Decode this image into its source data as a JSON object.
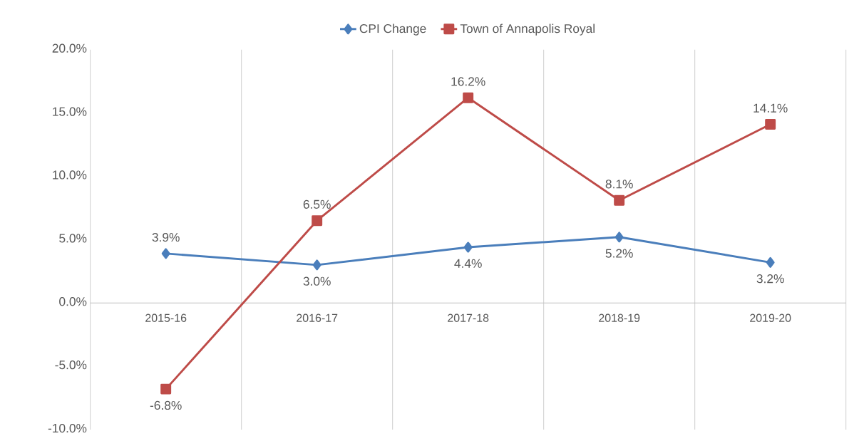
{
  "chart_data": {
    "type": "line",
    "categories": [
      "2015-16",
      "2016-17",
      "2017-18",
      "2018-19",
      "2019-20"
    ],
    "series": [
      {
        "name": "CPI Change",
        "color": "#4a7ebb",
        "marker": "diamond",
        "values": [
          3.9,
          3.0,
          4.4,
          5.2,
          3.2
        ],
        "value_labels": [
          "3.9%",
          "3.0%",
          "4.4%",
          "5.2%",
          "3.2%"
        ]
      },
      {
        "name": "Town of Annapolis Royal",
        "color": "#be4b48",
        "marker": "square",
        "values": [
          -6.8,
          6.5,
          16.2,
          8.1,
          14.1
        ],
        "value_labels": [
          "-6.8%",
          "6.5%",
          "16.2%",
          "8.1%",
          "14.1%"
        ]
      }
    ],
    "ylim": [
      -10,
      20
    ],
    "yticks": [
      {
        "value": -10,
        "label": "-10.0%"
      },
      {
        "value": -5,
        "label": "-5.0%"
      },
      {
        "value": 0,
        "label": "0.0%"
      },
      {
        "value": 5,
        "label": "5.0%"
      },
      {
        "value": 10,
        "label": "10.0%"
      },
      {
        "value": 15,
        "label": "15.0%"
      },
      {
        "value": 20,
        "label": "20.0%"
      }
    ],
    "grid": "x",
    "legend": "top",
    "line_style": "solid"
  }
}
